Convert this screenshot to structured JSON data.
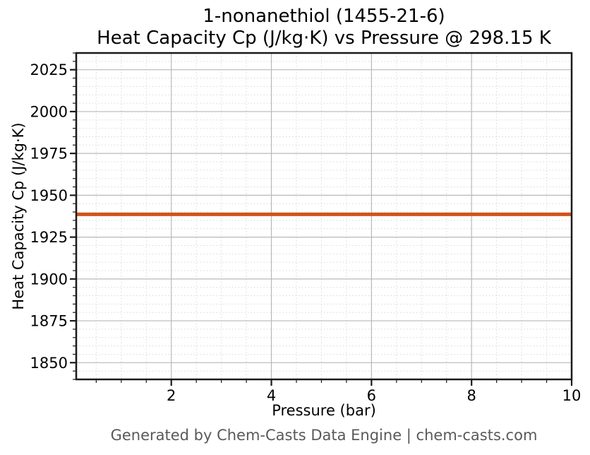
{
  "figure": {
    "title_line1": "1-nonanethiol (1455-21-6)",
    "title_line2": "Heat Capacity Cp (J/kg·K) vs Pressure @ 298.15 K",
    "footer": "Generated by Chem-Casts Data Engine | chem-casts.com"
  },
  "chart_data": {
    "type": "line",
    "title": "1-nonanethiol (1455-21-6)\nHeat Capacity Cp (J/kg·K) vs Pressure @ 298.15 K",
    "xlabel": "Pressure (bar)",
    "ylabel": "Heat Capacity Cp (J/kg·K)",
    "xlim": [
      0.1,
      10
    ],
    "ylim": [
      1840,
      2035
    ],
    "xticks": [
      2,
      4,
      6,
      8,
      10
    ],
    "yticks": [
      1850,
      1875,
      1900,
      1925,
      1950,
      1975,
      2000,
      2025
    ],
    "x_minor_step": 0.5,
    "y_minor_step": 5,
    "grid": true,
    "legend_position": "none",
    "series": [
      {
        "name": "Heat Capacity Cp",
        "color": "#d2521c",
        "line_width": 5,
        "x": [
          0.1,
          1,
          2,
          3,
          4,
          5,
          6,
          7,
          8,
          9,
          10
        ],
        "y": [
          1938.6,
          1938.6,
          1938.6,
          1938.6,
          1938.6,
          1938.6,
          1938.6,
          1938.6,
          1938.6,
          1938.6,
          1938.6
        ]
      }
    ]
  },
  "colors": {
    "line": "#d2521c",
    "grid_major": "#b8b8b8",
    "grid_minor": "#d9d9d9",
    "spine": "#1a1a1a",
    "tick": "#1a1a1a",
    "title_text": "#000000",
    "footer_text": "#595959"
  }
}
